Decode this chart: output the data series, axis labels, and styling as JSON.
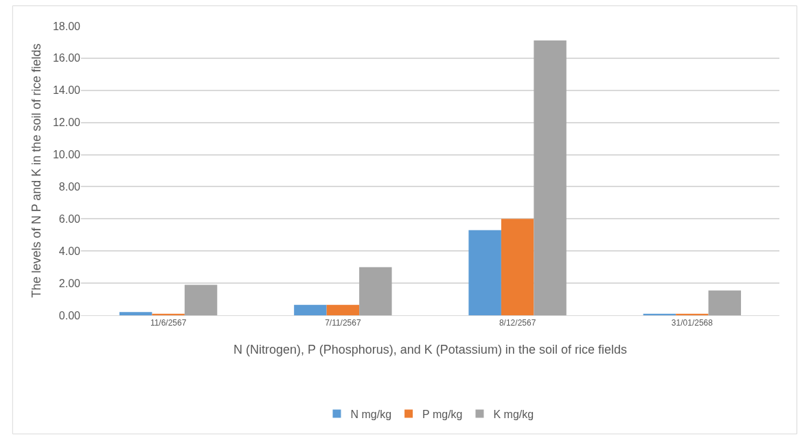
{
  "chart_data": {
    "type": "bar",
    "xlabel": "N (Nitrogen), P (Phosphorus), and K (Potassium) in the soil of rice fields",
    "ylabel": "The levels of N P and K in the soil of rice fields",
    "categories": [
      "11/6/2567",
      "7/11/2567",
      "8/12/2567",
      "31/01/2568"
    ],
    "series": [
      {
        "name": "N mg/kg",
        "color": "#5b9bd5",
        "values": [
          0.2,
          0.65,
          5.3,
          0.1
        ]
      },
      {
        "name": "P mg/kg",
        "color": "#ed7d31",
        "values": [
          0.1,
          0.65,
          6.0,
          0.1
        ]
      },
      {
        "name": "K mg/kg",
        "color": "#a5a5a5",
        "values": [
          1.9,
          3.0,
          17.1,
          1.55
        ]
      }
    ],
    "ylim": [
      0,
      18
    ],
    "yticks": [
      {
        "value": 0,
        "label": "0.00"
      },
      {
        "value": 2,
        "label": "2.00"
      },
      {
        "value": 4,
        "label": "4.00"
      },
      {
        "value": 6,
        "label": "6.00"
      },
      {
        "value": 8,
        "label": "8.00"
      },
      {
        "value": 10,
        "label": "10.00"
      },
      {
        "value": 12,
        "label": "12.00"
      },
      {
        "value": 14,
        "label": "14.00"
      },
      {
        "value": 16,
        "label": "16.00"
      },
      {
        "value": 18,
        "label": "18.00"
      }
    ],
    "grid": "y",
    "legend": "bottom"
  }
}
